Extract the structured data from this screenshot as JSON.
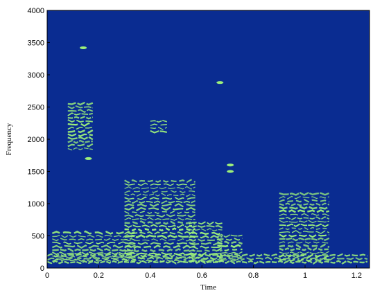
{
  "chart_data": {
    "type": "heatmap",
    "title": "",
    "xlabel": "Time",
    "ylabel": "Frequency",
    "xlim": [
      0,
      1.25
    ],
    "ylim": [
      0,
      4000
    ],
    "x_ticks": [
      "0",
      "0.2",
      "0.4",
      "0.6",
      "0.8",
      "1",
      "1.2"
    ],
    "x_tick_values": [
      0,
      0.2,
      0.4,
      0.6,
      0.8,
      1.0,
      1.2
    ],
    "y_ticks": [
      "0",
      "500",
      "1000",
      "1500",
      "2000",
      "2500",
      "3000",
      "3500",
      "4000"
    ],
    "y_tick_values": [
      0,
      500,
      1000,
      1500,
      2000,
      2500,
      3000,
      3500,
      4000
    ],
    "grid": false,
    "background_color": "#0a2c91",
    "energy_color": "#9df07a",
    "energy_regions": [
      {
        "name": "region-1",
        "t_start": 0.08,
        "t_end": 0.19,
        "f_low": 1800,
        "f_high": 2550
      },
      {
        "name": "region-2",
        "t_start": 0.02,
        "t_end": 0.35,
        "f_low": 100,
        "f_high": 550
      },
      {
        "name": "region-3",
        "t_start": 0.3,
        "t_end": 0.58,
        "f_low": 100,
        "f_high": 1350
      },
      {
        "name": "region-4",
        "t_start": 0.4,
        "t_end": 0.48,
        "f_low": 2100,
        "f_high": 2280
      },
      {
        "name": "region-5",
        "t_start": 0.55,
        "t_end": 0.68,
        "f_low": 100,
        "f_high": 700
      },
      {
        "name": "region-6",
        "t_start": 0.66,
        "t_end": 0.76,
        "f_low": 100,
        "f_high": 500
      },
      {
        "name": "region-7",
        "t_start": 0.9,
        "t_end": 1.1,
        "f_low": 100,
        "f_high": 1150
      },
      {
        "name": "region-8",
        "t_start": 0.0,
        "t_end": 1.25,
        "f_low": 80,
        "f_high": 200
      }
    ],
    "energy_spots": [
      {
        "name": "spot-1",
        "t": 0.14,
        "f": 3420
      },
      {
        "name": "spot-2",
        "t": 0.67,
        "f": 2880
      },
      {
        "name": "spot-3",
        "t": 0.71,
        "f": 1600
      },
      {
        "name": "spot-4",
        "t": 0.71,
        "f": 1500
      },
      {
        "name": "spot-5",
        "t": 0.16,
        "f": 1700
      }
    ]
  }
}
